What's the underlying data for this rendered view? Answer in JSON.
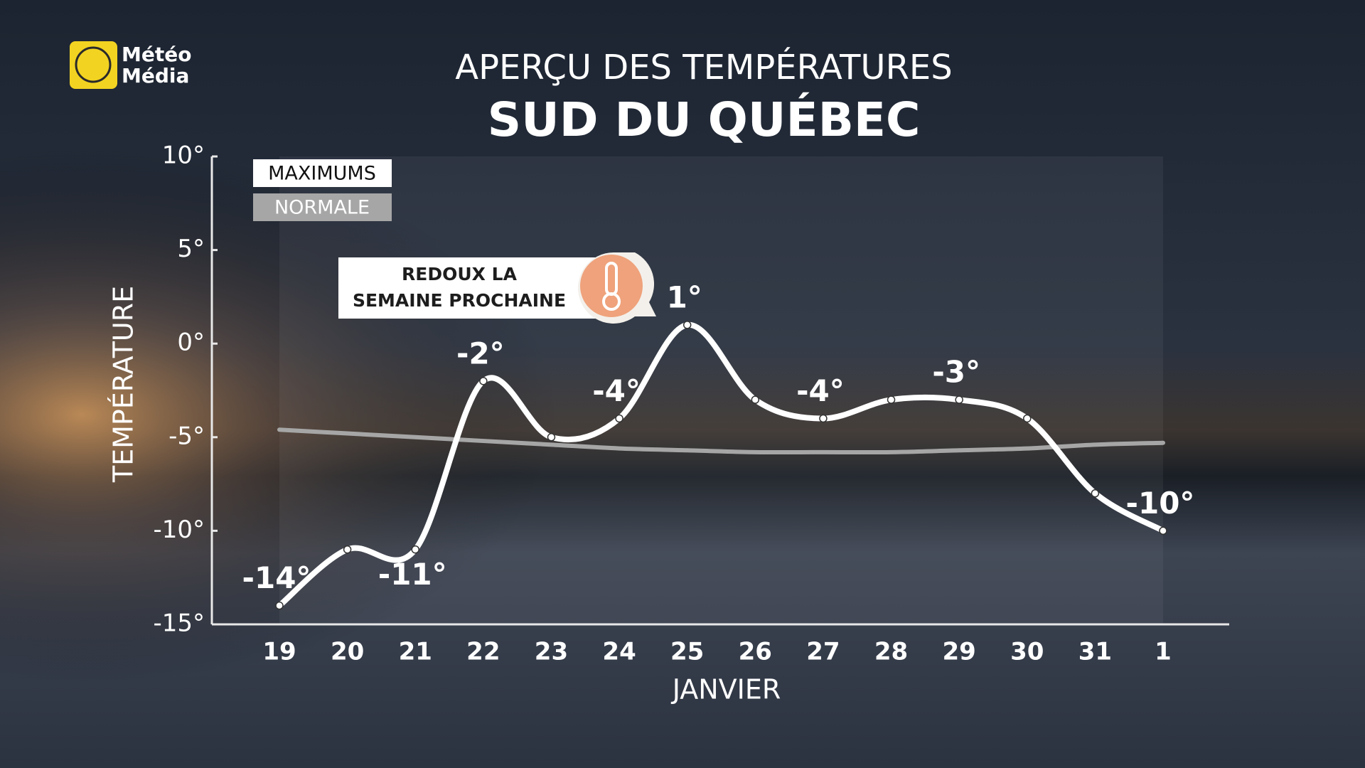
{
  "logo": [
    "Météo",
    "Média"
  ],
  "chart_data": {
    "type": "line",
    "title": "APERÇU DES TEMPÉRATURES",
    "subtitle": "SUD DU QUÉBEC",
    "x_label": "JANVIER",
    "y_label": "TEMPÉRATURE",
    "categories": [
      "19",
      "20",
      "21",
      "22",
      "23",
      "24",
      "25",
      "26",
      "27",
      "28",
      "29",
      "30",
      "31",
      "1"
    ],
    "series": [
      {
        "name": "MAXIMUMS",
        "color": "#ffffff",
        "values": [
          -14,
          -11,
          -11,
          -2,
          -5,
          -4,
          1,
          -3,
          -4,
          -3,
          -3,
          -4,
          -8,
          -10
        ],
        "value_labels": [
          "-14°",
          null,
          "-11°",
          "-2°",
          null,
          "-4°",
          "1°",
          null,
          "-4°",
          null,
          "-3°",
          null,
          null,
          "-10°"
        ]
      },
      {
        "name": "NORMALE",
        "color": "#a6a6a6",
        "values": [
          -4.6,
          -4.8,
          -5.0,
          -5.2,
          -5.4,
          -5.6,
          -5.7,
          -5.8,
          -5.8,
          -5.8,
          -5.7,
          -5.6,
          -5.4,
          -5.3
        ]
      }
    ],
    "ylim": [
      -15,
      10
    ],
    "yticks": [
      {
        "value": 10,
        "label": "10°"
      },
      {
        "value": 5,
        "label": "5°"
      },
      {
        "value": 0,
        "label": "0°"
      },
      {
        "value": -5,
        "label": "-5°"
      },
      {
        "value": -10,
        "label": "-10°"
      },
      {
        "value": -15,
        "label": "-15°"
      }
    ],
    "annotation": [
      "REDOUX LA",
      "SEMAINE PROCHAINE"
    ]
  }
}
